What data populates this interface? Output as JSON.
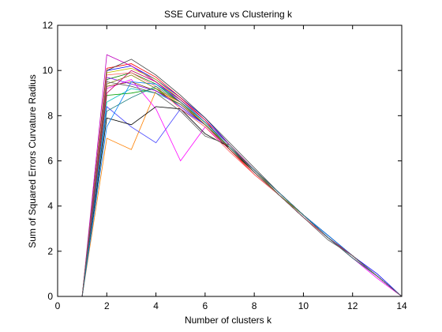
{
  "chart_data": {
    "type": "line",
    "title": "SSE Curvature vs Clustering k",
    "xlabel": "Number of clusters k",
    "ylabel": "Sum of Squared Errors Curvature Radius",
    "xlim": [
      0,
      14
    ],
    "ylim": [
      0,
      12
    ],
    "xticks": [
      0,
      2,
      4,
      6,
      8,
      10,
      12,
      14
    ],
    "yticks": [
      0,
      2,
      4,
      6,
      8,
      10,
      12
    ],
    "grid": false,
    "legend": "none",
    "x": [
      1,
      2,
      3,
      4,
      5,
      6,
      7,
      8,
      9,
      10,
      11,
      12,
      13,
      14
    ],
    "series": [
      {
        "color": "#0000ff",
        "values": [
          0,
          10.0,
          10.2,
          9.6,
          8.8,
          7.9,
          6.7,
          5.6,
          4.6,
          3.6,
          2.6,
          1.8,
          1.0,
          0
        ]
      },
      {
        "color": "#008000",
        "values": [
          0,
          9.6,
          9.9,
          9.4,
          8.6,
          7.7,
          6.6,
          5.5,
          4.5,
          3.6,
          2.7,
          1.8,
          0.9,
          0
        ]
      },
      {
        "color": "#ff0000",
        "values": [
          0,
          10.1,
          10.3,
          9.7,
          8.8,
          7.8,
          6.5,
          5.4,
          4.5,
          3.5,
          2.6,
          1.7,
          0.9,
          0
        ]
      },
      {
        "color": "#00bfbf",
        "values": [
          0,
          8.6,
          9.2,
          9.0,
          8.5,
          7.6,
          6.6,
          5.6,
          4.6,
          3.6,
          2.7,
          1.8,
          0.9,
          0
        ]
      },
      {
        "color": "#bf00bf",
        "values": [
          0,
          10.7,
          10.2,
          9.5,
          8.6,
          7.6,
          6.6,
          5.6,
          4.6,
          3.6,
          2.7,
          1.8,
          0.9,
          0
        ]
      },
      {
        "color": "#bfbf00",
        "values": [
          0,
          9.9,
          10.1,
          9.6,
          8.7,
          7.7,
          6.6,
          5.6,
          4.5,
          3.5,
          2.6,
          1.7,
          0.9,
          0
        ]
      },
      {
        "color": "#404040",
        "values": [
          0,
          10.0,
          10.5,
          9.8,
          8.9,
          7.9,
          6.8,
          5.7,
          4.6,
          3.6,
          2.7,
          1.8,
          0.9,
          0
        ]
      },
      {
        "color": "#ff8000",
        "values": [
          0,
          7.0,
          6.5,
          9.1,
          8.6,
          7.6,
          6.6,
          5.6,
          4.6,
          3.6,
          2.6,
          1.7,
          0.9,
          0
        ]
      },
      {
        "color": "#4040ff",
        "values": [
          0,
          8.4,
          7.5,
          6.8,
          8.3,
          7.6,
          6.6,
          5.6,
          4.6,
          3.6,
          2.6,
          1.8,
          0.9,
          0
        ]
      },
      {
        "color": "#ff00ff",
        "values": [
          0,
          9.2,
          9.6,
          8.3,
          6.0,
          7.5,
          6.5,
          5.5,
          4.5,
          3.5,
          2.6,
          1.7,
          0.8,
          0
        ]
      },
      {
        "color": "#000000",
        "values": [
          0,
          7.9,
          7.6,
          8.4,
          8.3,
          7.2,
          6.6,
          5.5,
          4.5,
          3.5,
          2.6,
          1.7,
          0.9,
          0
        ]
      },
      {
        "color": "#7f3f00",
        "values": [
          0,
          9.3,
          9.5,
          9.1,
          8.5,
          7.6,
          6.5,
          5.5,
          4.5,
          3.5,
          2.6,
          1.8,
          0.9,
          0
        ]
      },
      {
        "color": "#00a000",
        "values": [
          0,
          8.9,
          9.0,
          9.2,
          8.4,
          7.6,
          6.6,
          5.6,
          4.6,
          3.6,
          2.6,
          1.8,
          0.9,
          0
        ]
      },
      {
        "color": "#8000ff",
        "values": [
          0,
          9.7,
          9.4,
          9.1,
          8.4,
          7.6,
          6.6,
          5.6,
          4.5,
          3.5,
          2.6,
          1.7,
          0.9,
          0
        ]
      },
      {
        "color": "#ff6060",
        "values": [
          0,
          9.8,
          9.9,
          9.3,
          8.3,
          7.5,
          6.4,
          5.4,
          4.5,
          3.5,
          2.6,
          1.7,
          0.9,
          0
        ]
      },
      {
        "color": "#0080ff",
        "values": [
          0,
          7.5,
          9.5,
          9.4,
          8.7,
          7.7,
          6.7,
          5.6,
          4.6,
          3.6,
          2.7,
          1.8,
          0.9,
          0
        ]
      },
      {
        "color": "#808000",
        "values": [
          0,
          9.4,
          9.8,
          9.2,
          8.6,
          7.6,
          6.6,
          5.6,
          4.5,
          3.6,
          2.6,
          1.8,
          0.9,
          0
        ]
      },
      {
        "color": "#c00060",
        "values": [
          0,
          9.0,
          10.0,
          9.5,
          8.7,
          7.8,
          6.7,
          5.6,
          4.6,
          3.6,
          2.6,
          1.8,
          0.9,
          0
        ]
      },
      {
        "color": "#208080",
        "values": [
          0,
          8.2,
          8.8,
          9.3,
          8.6,
          7.7,
          6.6,
          5.6,
          4.6,
          3.6,
          2.6,
          1.7,
          0.9,
          0
        ]
      },
      {
        "color": "#606060",
        "values": [
          0,
          9.5,
          9.3,
          9.0,
          8.2,
          7.1,
          6.7,
          5.5,
          4.5,
          3.5,
          2.5,
          1.8,
          0.9,
          0
        ]
      }
    ]
  }
}
